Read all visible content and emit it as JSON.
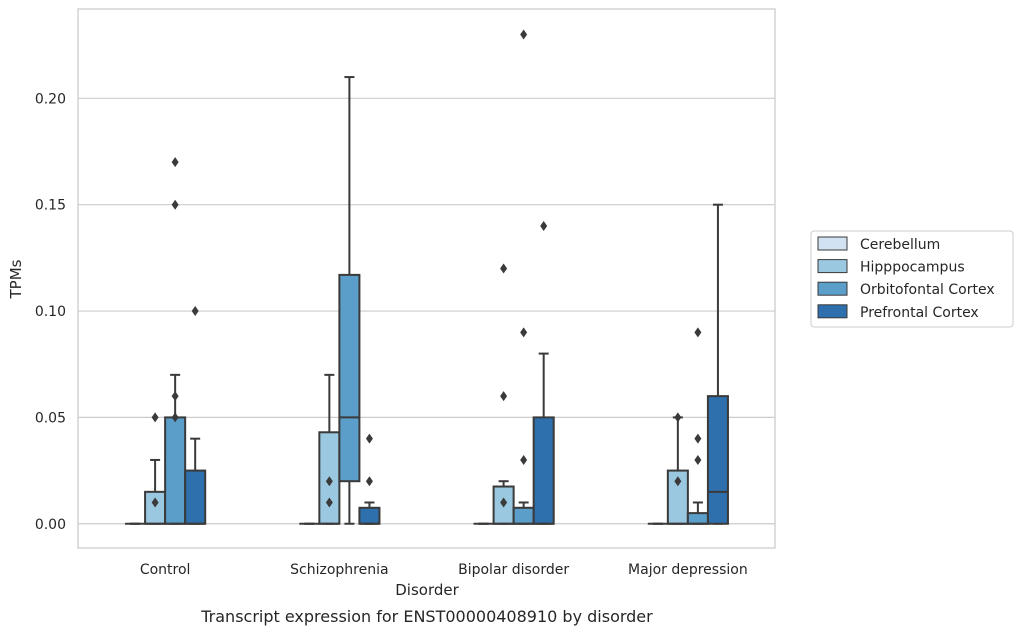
{
  "chart_data": {
    "type": "box",
    "caption": "Transcript expression for ENST00000408910 by disorder",
    "xlabel": "Disorder",
    "ylabel": "TPMs",
    "categories": [
      "Control",
      "Schizophrenia",
      "Bipolar disorder",
      "Major depression"
    ],
    "ylim": [
      -0.0114,
      0.242
    ],
    "yticks": [
      0.0,
      0.05,
      0.1,
      0.15,
      0.2
    ],
    "ytick_labels": [
      "0.00",
      "0.05",
      "0.10",
      "0.15",
      "0.20"
    ],
    "grid": true,
    "legend_position": "right",
    "series": [
      {
        "name": "Cerebellum",
        "color": "#d1e2f2",
        "boxes": [
          {
            "category": "Control",
            "q1": 0,
            "median": 0,
            "q3": 0,
            "whisker_low": 0,
            "whisker_high": 0,
            "outliers": []
          },
          {
            "category": "Schizophrenia",
            "q1": 0,
            "median": 0,
            "q3": 0,
            "whisker_low": 0,
            "whisker_high": 0,
            "outliers": []
          },
          {
            "category": "Bipolar disorder",
            "q1": 0,
            "median": 0,
            "q3": 0,
            "whisker_low": 0,
            "whisker_high": 0,
            "outliers": []
          },
          {
            "category": "Major depression",
            "q1": 0,
            "median": 0,
            "q3": 0,
            "whisker_low": 0,
            "whisker_high": 0,
            "outliers": []
          }
        ]
      },
      {
        "name": "Hipppocampus",
        "color": "#9ac8e0",
        "boxes": [
          {
            "category": "Control",
            "q1": 0,
            "median": 0,
            "q3": 0.015,
            "whisker_low": 0,
            "whisker_high": 0.03,
            "outliers": [
              0.01,
              0.05
            ]
          },
          {
            "category": "Schizophrenia",
            "q1": 0,
            "median": 0,
            "q3": 0.043,
            "whisker_low": 0,
            "whisker_high": 0.07,
            "outliers": [
              0.01,
              0.02
            ]
          },
          {
            "category": "Bipolar disorder",
            "q1": 0,
            "median": 0,
            "q3": 0.0175,
            "whisker_low": 0,
            "whisker_high": 0.02,
            "outliers": [
              0.01,
              0.06,
              0.12
            ]
          },
          {
            "category": "Major depression",
            "q1": 0,
            "median": 0,
            "q3": 0.025,
            "whisker_low": 0,
            "whisker_high": 0.05,
            "outliers": [
              0.02,
              0.05
            ]
          }
        ]
      },
      {
        "name": "Orbitofontal Cortex",
        "color": "#5a9ec9",
        "boxes": [
          {
            "category": "Control",
            "q1": 0,
            "median": 0,
            "q3": 0.05,
            "whisker_low": 0,
            "whisker_high": 0.07,
            "outliers": [
              0.05,
              0.06,
              0.15,
              0.17
            ]
          },
          {
            "category": "Schizophrenia",
            "q1": 0.02,
            "median": 0.05,
            "q3": 0.117,
            "whisker_low": 0,
            "whisker_high": 0.21,
            "outliers": []
          },
          {
            "category": "Bipolar disorder",
            "q1": 0,
            "median": 0,
            "q3": 0.0075,
            "whisker_low": 0,
            "whisker_high": 0.01,
            "outliers": [
              0.03,
              0.09,
              0.23
            ]
          },
          {
            "category": "Major depression",
            "q1": 0,
            "median": 0,
            "q3": 0.005,
            "whisker_low": 0,
            "whisker_high": 0.01,
            "outliers": [
              0.03,
              0.04,
              0.09
            ]
          }
        ]
      },
      {
        "name": "Prefrontal Cortex",
        "color": "#2e6fad",
        "boxes": [
          {
            "category": "Control",
            "q1": 0,
            "median": 0,
            "q3": 0.025,
            "whisker_low": 0,
            "whisker_high": 0.04,
            "outliers": [
              0.1
            ]
          },
          {
            "category": "Schizophrenia",
            "q1": 0,
            "median": 0,
            "q3": 0.0075,
            "whisker_low": 0,
            "whisker_high": 0.01,
            "outliers": [
              0.02,
              0.04
            ]
          },
          {
            "category": "Bipolar disorder",
            "q1": 0,
            "median": 0,
            "q3": 0.05,
            "whisker_low": 0,
            "whisker_high": 0.08,
            "outliers": [
              0.14
            ]
          },
          {
            "category": "Major depression",
            "q1": 0,
            "median": 0.015,
            "q3": 0.06,
            "whisker_low": 0,
            "whisker_high": 0.15,
            "outliers": []
          }
        ]
      }
    ]
  }
}
